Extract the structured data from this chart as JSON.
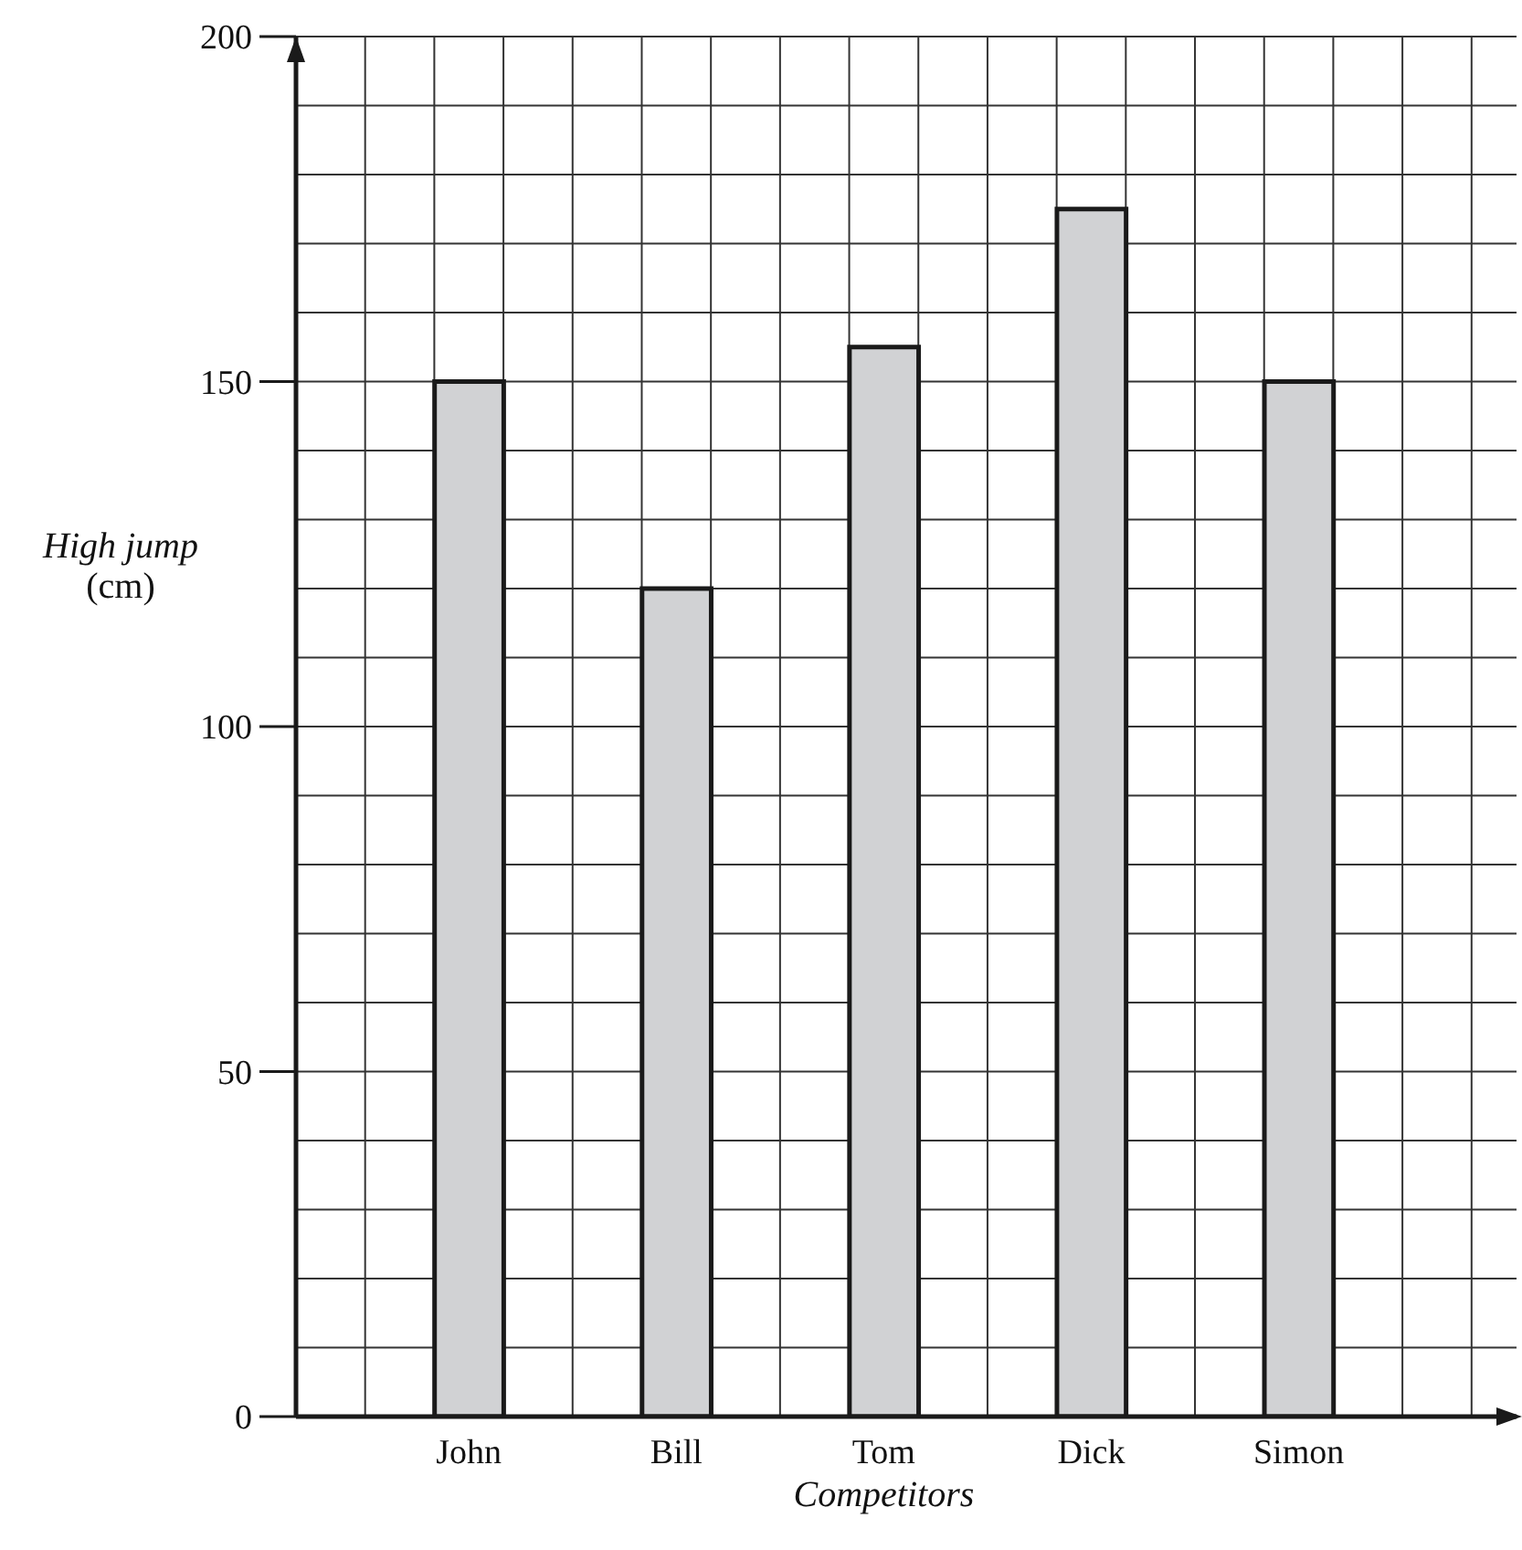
{
  "chart_data": {
    "type": "bar",
    "xlabel": "Competitors",
    "ylabel": "High jump (cm)",
    "categories": [
      "John",
      "Bill",
      "Tom",
      "Dick",
      "Simon"
    ],
    "values": [
      150,
      120,
      155,
      175,
      150
    ],
    "color": "#d1d2d4",
    "ylim": [
      0,
      200
    ],
    "yticks": [
      0,
      50,
      100,
      150,
      200
    ],
    "grid": true
  }
}
